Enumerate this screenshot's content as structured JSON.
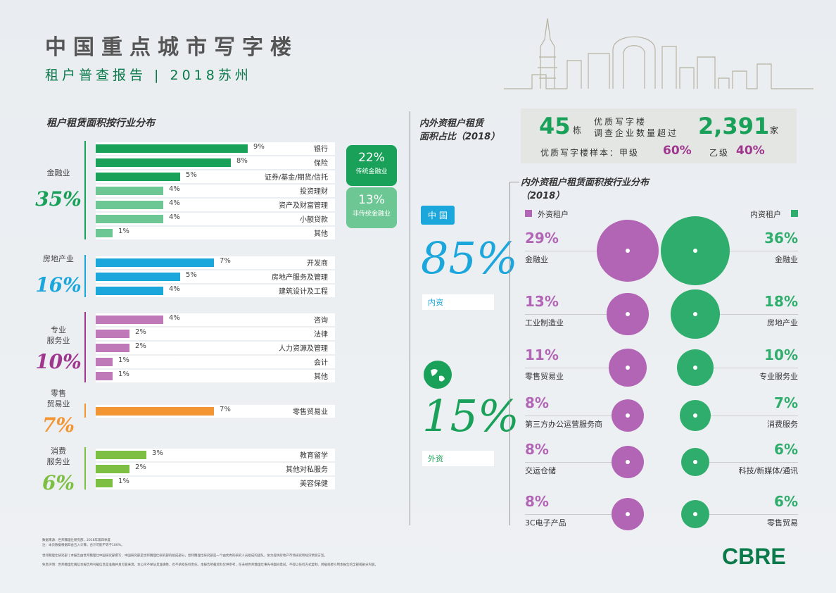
{
  "header": {
    "title": "中国重点城市写字楼",
    "subtitle": "租户普查报告 | 2018苏州"
  },
  "left": {
    "section_title": "租户租赁面积按行业分布",
    "categories": [
      {
        "label": "金融业",
        "pct": "35%",
        "color": "#1aa159",
        "rows": [
          {
            "pct": "9%",
            "value": 9,
            "label": "银行",
            "color": "#1aa159"
          },
          {
            "pct": "8%",
            "value": 8,
            "label": "保险",
            "color": "#1aa159"
          },
          {
            "pct": "5%",
            "value": 5,
            "label": "证券/基金/期货/信托",
            "color": "#1aa159"
          },
          {
            "pct": "4%",
            "value": 4,
            "label": "投资理财",
            "color": "#6cc794"
          },
          {
            "pct": "4%",
            "value": 4,
            "label": "资产及财富管理",
            "color": "#6cc794"
          },
          {
            "pct": "4%",
            "value": 4,
            "label": "小额贷款",
            "color": "#6cc794"
          },
          {
            "pct": "1%",
            "value": 1,
            "label": "其他",
            "color": "#6cc794"
          }
        ]
      },
      {
        "label": "房地产业",
        "pct": "16%",
        "color": "#1ba6dc",
        "rows": [
          {
            "pct": "7%",
            "value": 7,
            "label": "开发商",
            "color": "#1ba6dc"
          },
          {
            "pct": "5%",
            "value": 5,
            "label": "房地产服务及管理",
            "color": "#1ba6dc"
          },
          {
            "pct": "4%",
            "value": 4,
            "label": "建筑设计及工程",
            "color": "#1ba6dc"
          }
        ]
      },
      {
        "label": "专业\n服务业",
        "pct": "10%",
        "color": "#a0378f",
        "rows": [
          {
            "pct": "4%",
            "value": 4,
            "label": "咨询",
            "color": "#c079b8"
          },
          {
            "pct": "2%",
            "value": 2,
            "label": "法律",
            "color": "#c079b8"
          },
          {
            "pct": "2%",
            "value": 2,
            "label": "人力资源及管理",
            "color": "#c079b8"
          },
          {
            "pct": "1%",
            "value": 1,
            "label": "会计",
            "color": "#c079b8"
          },
          {
            "pct": "1%",
            "value": 1,
            "label": "其他",
            "color": "#c079b8"
          }
        ]
      },
      {
        "label": "零售\n贸易业",
        "pct": "7%",
        "color": "#f39533",
        "rows": [
          {
            "pct": "7%",
            "value": 7,
            "label": "零售贸易业",
            "color": "#f39533"
          }
        ]
      },
      {
        "label": "消费\n服务业",
        "pct": "6%",
        "color": "#7cbf43",
        "rows": [
          {
            "pct": "3%",
            "value": 3,
            "label": "教育留学",
            "color": "#7cbf43"
          },
          {
            "pct": "2%",
            "value": 2,
            "label": "其他对私服务",
            "color": "#7cbf43"
          },
          {
            "pct": "1%",
            "value": 1,
            "label": "美容保健",
            "color": "#7cbf43"
          }
        ]
      }
    ],
    "boxes": [
      {
        "big": "22%",
        "small": "传统金融业",
        "color": "#1aa159"
      },
      {
        "big": "13%",
        "small": "非传统金融业",
        "color": "#6cc794"
      }
    ]
  },
  "middle": {
    "section_title": "内外资租户租赁\n面积占比（2018）",
    "china_tag": "中 国",
    "domestic_pct": "85%",
    "domestic_label": "内资",
    "foreign_pct": "15%",
    "foreign_label": "外资",
    "colors": {
      "domestic": "#1ba6dc",
      "foreign": "#1aa159"
    }
  },
  "summary": {
    "buildings_num": "45",
    "buildings_unit": "栋",
    "desc_line1": "优质写字楼",
    "desc_line2": "调查企业数量超过",
    "companies_num": "2,391",
    "companies_unit": "家",
    "sample_label": "优质写字楼样本：甲级",
    "grade_a_pct": "60%",
    "grade_b_label": "乙级",
    "grade_b_pct": "40%"
  },
  "right": {
    "section_title": "内外资租户租赁面积按行业分布\n（2018）",
    "legend_foreign": "外资租户",
    "legend_domestic": "内资租户",
    "colors": {
      "foreign": "#b265b5",
      "domestic": "#2fad6c"
    },
    "foreign": [
      {
        "pct": "29%",
        "value": 29,
        "label": "金融业"
      },
      {
        "pct": "13%",
        "value": 13,
        "label": "工业制造业"
      },
      {
        "pct": "11%",
        "value": 11,
        "label": "零售贸易业"
      },
      {
        "pct": "8%",
        "value": 8,
        "label": "第三方办公运营服务商"
      },
      {
        "pct": "8%",
        "value": 8,
        "label": "交运仓储"
      },
      {
        "pct": "8%",
        "value": 8,
        "label": "3C电子产品"
      }
    ],
    "domestic": [
      {
        "pct": "36%",
        "value": 36,
        "label": "金融业"
      },
      {
        "pct": "18%",
        "value": 18,
        "label": "房地产业"
      },
      {
        "pct": "10%",
        "value": 10,
        "label": "专业服务业"
      },
      {
        "pct": "7%",
        "value": 7,
        "label": "消费服务"
      },
      {
        "pct": "6%",
        "value": 6,
        "label": "科技/新媒体/通讯"
      },
      {
        "pct": "6%",
        "value": 6,
        "label": "零售贸易"
      }
    ]
  },
  "footer": {
    "line1": "数据来源：世邦魏理仕研究部，2018年第四季度",
    "line2": "注：本页数据根据四舍五入计算，合计可能不等于100%。",
    "line3": "世邦魏理仕研究部 | 本报告由世邦魏理仕中国研究部撰写，中国研究部是世邦魏理仕研究部的组成部分，世邦魏理仕研究部是一个由优秀的研究人员组成的团队，协力提供房地产市场研究和经济预测方案。",
    "line4": "免责声明：世邦魏理仕确信本报告所刊载信息是准确并且可靠来源，本公司不保证其准确性，也不承担任何责任。本报告所载资料仅供参考，在未经世邦魏理仕事先书面同意前，不得以任何方式复制、转载或者引用本报告的全部或部分内容。",
    "logo": "CBRE"
  }
}
